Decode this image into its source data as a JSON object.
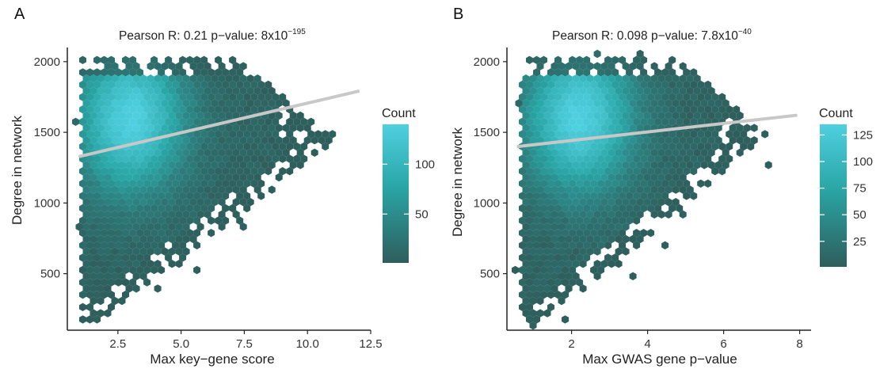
{
  "colors": {
    "low": "#2e5e5c",
    "mid": "#2aa6a6",
    "high": "#4fd0e0",
    "regression_line": "#c8c8c8"
  },
  "chart_data": [
    {
      "type": "heatmap",
      "subtype": "hexbin",
      "panel_label": "A",
      "title_prefix": "Pearson R: 0.21 p−value: 8x10",
      "title_exponent": "−195",
      "xlabel": "Max key−gene score",
      "ylabel": "Degree in network",
      "xlim": [
        0.5,
        12.5
      ],
      "ylim": [
        100,
        2100
      ],
      "xticks": [
        2.5,
        5.0,
        7.5,
        10.0,
        12.5
      ],
      "xtick_labels": [
        "2.5",
        "5.0",
        "7.5",
        "10.0",
        "12.5"
      ],
      "yticks": [
        500,
        1000,
        1500,
        2000
      ],
      "ytick_labels": [
        "500",
        "1000",
        "1500",
        "2000"
      ],
      "regression": {
        "x": [
          1.0,
          12.0
        ],
        "y": [
          1330,
          1790
        ]
      },
      "density_peak": {
        "x": 3.0,
        "y": 1600
      },
      "legend": {
        "title": "Count",
        "range": [
          1,
          140
        ],
        "ticks": [
          50,
          100
        ],
        "tick_labels": [
          "50",
          "100"
        ]
      }
    },
    {
      "type": "heatmap",
      "subtype": "hexbin",
      "panel_label": "B",
      "title_prefix": "Pearson R: 0.098 p−value: 7.8x10",
      "title_exponent": "−40",
      "xlabel": "Max GWAS gene p−value",
      "ylabel": "Degree in network",
      "xlim": [
        0.3,
        8.3
      ],
      "ylim": [
        100,
        2100
      ],
      "xticks": [
        2,
        4,
        6,
        8
      ],
      "xtick_labels": [
        "2",
        "4",
        "6",
        "8"
      ],
      "yticks": [
        500,
        1000,
        1500,
        2000
      ],
      "ytick_labels": [
        "500",
        "1000",
        "1500",
        "2000"
      ],
      "regression": {
        "x": [
          0.6,
          7.9
        ],
        "y": [
          1400,
          1620
        ]
      },
      "density_peak": {
        "x": 2.2,
        "y": 1600
      },
      "legend": {
        "title": "Count",
        "range": [
          1,
          135
        ],
        "ticks": [
          25,
          50,
          75,
          100,
          125
        ],
        "tick_labels": [
          "25",
          "50",
          "75",
          "100",
          "125"
        ]
      }
    }
  ]
}
